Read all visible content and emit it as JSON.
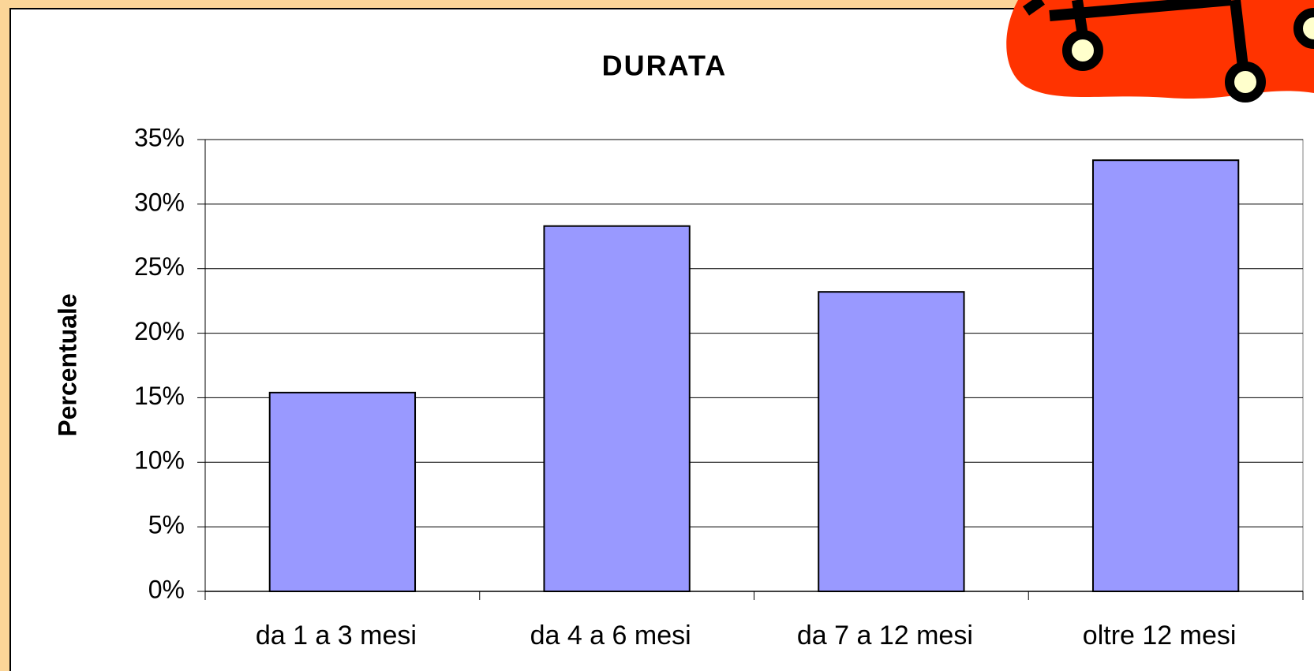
{
  "chart_data": {
    "type": "bar",
    "title": "DURATA",
    "y_label": "Percentuale",
    "categories": [
      "da 1 a 3 mesi",
      "da 4 a 6 mesi",
      "da 7 a 12 mesi",
      "oltre 12 mesi"
    ],
    "values": [
      15.4,
      28.3,
      23.2,
      33.4
    ],
    "color": "#9999ff",
    "ylim": [
      0,
      35
    ],
    "yticks": [
      {
        "value": 0,
        "label": "0%"
      },
      {
        "value": 5,
        "label": "5%"
      },
      {
        "value": 10,
        "label": "10%"
      },
      {
        "value": 15,
        "label": "15%"
      },
      {
        "value": 20,
        "label": "20%"
      },
      {
        "value": 25,
        "label": "25%"
      },
      {
        "value": 30,
        "label": "30%"
      },
      {
        "value": 35,
        "label": "35%"
      }
    ],
    "grid": true
  }
}
